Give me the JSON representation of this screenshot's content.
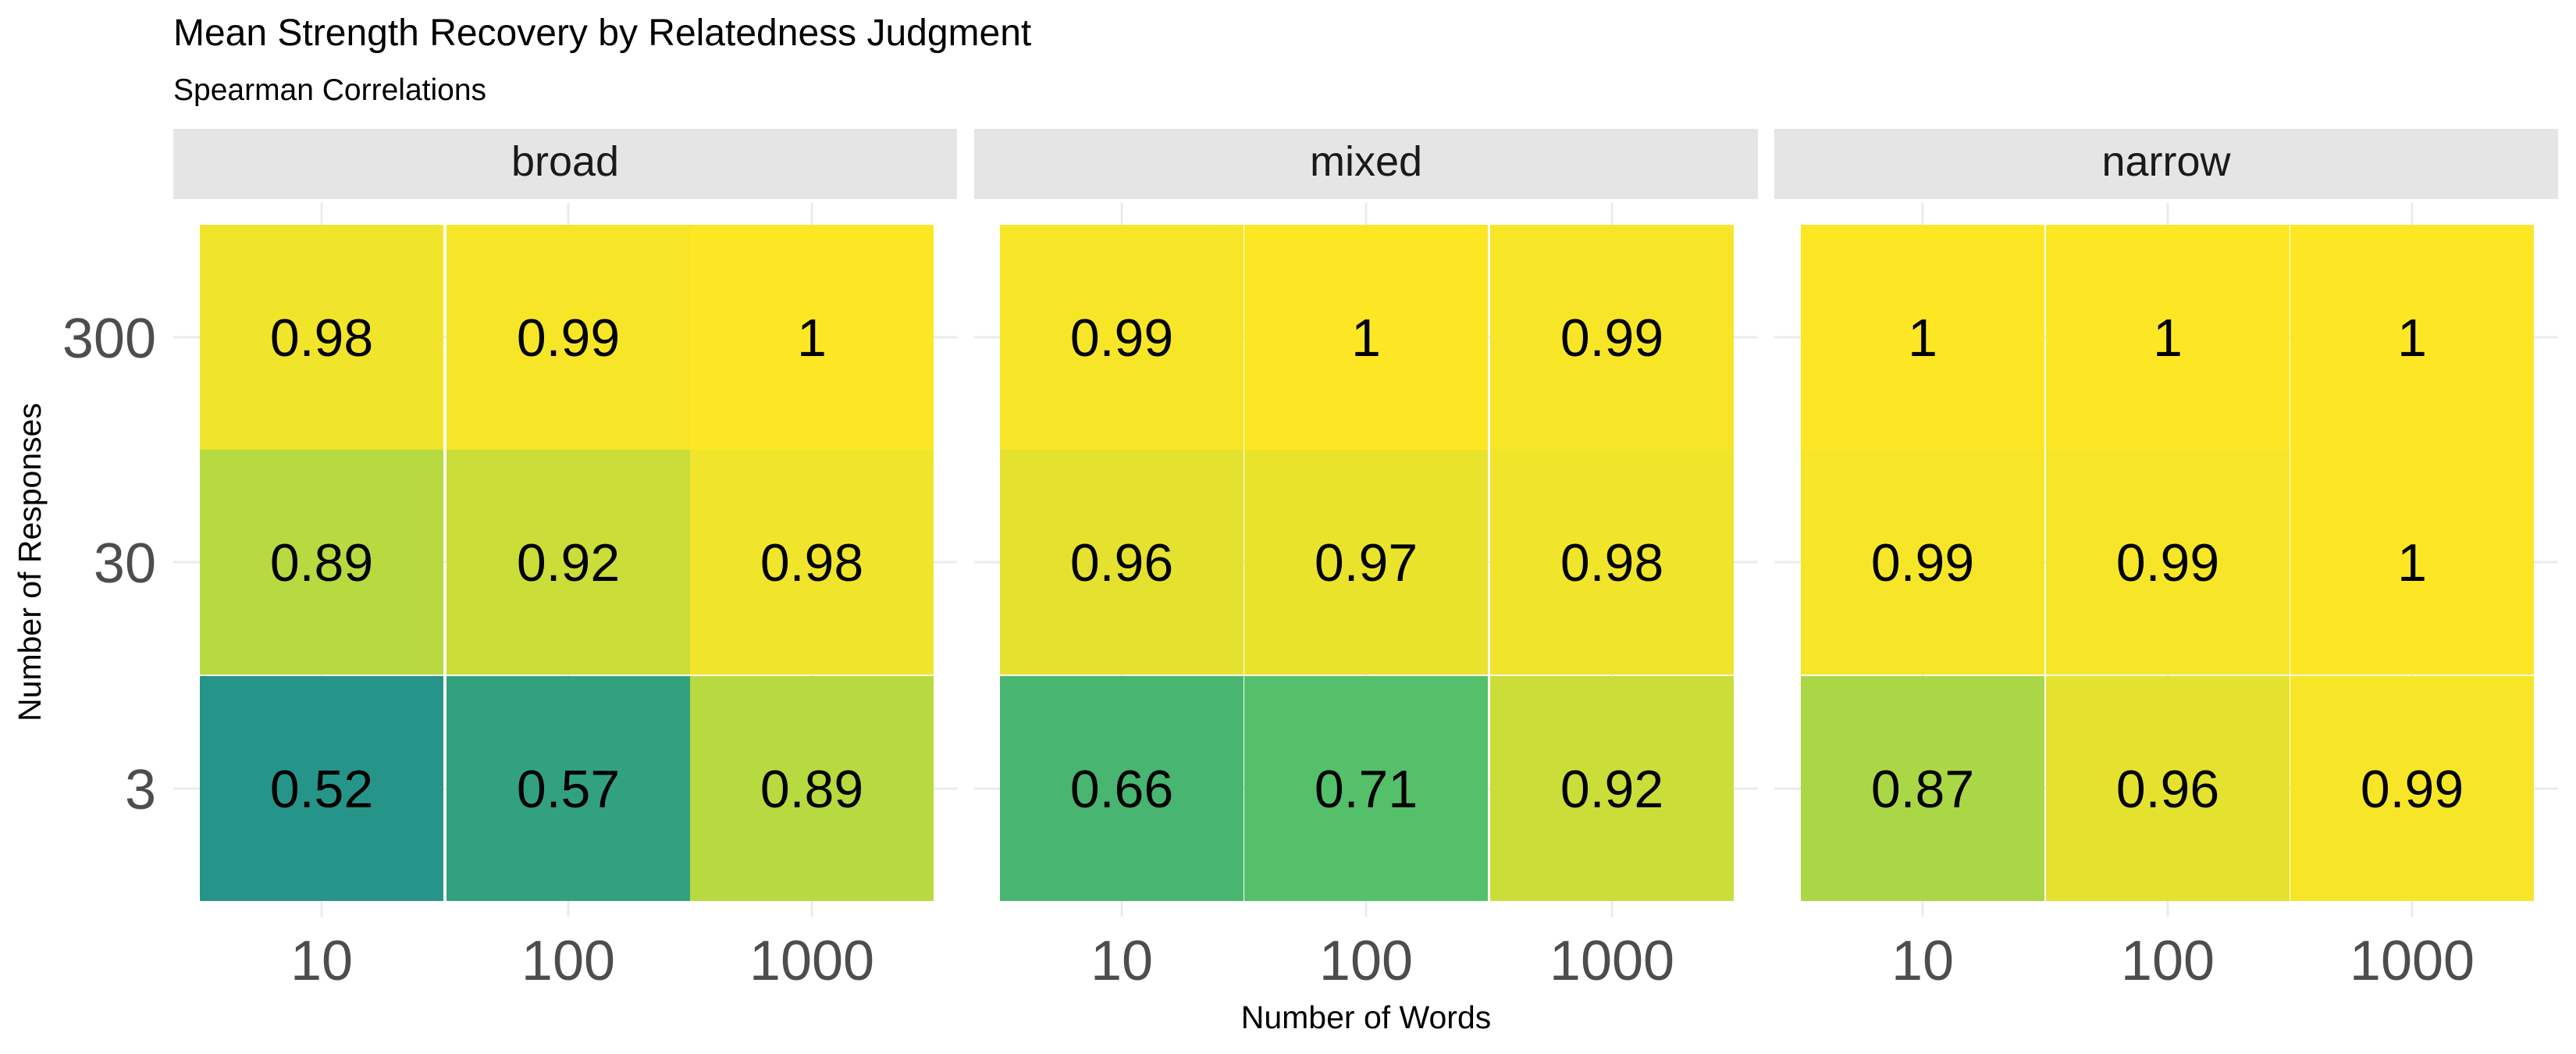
{
  "chart_data": {
    "type": "heatmap",
    "title": "Mean Strength Recovery by Relatedness Judgment",
    "subtitle": "Spearman Correlations",
    "xlabel": "Number of Words",
    "ylabel": "Number of Responses",
    "x_categories": [
      "10",
      "100",
      "1000"
    ],
    "y_categories": [
      "3",
      "30",
      "300"
    ],
    "facets": [
      {
        "name": "broad",
        "values": [
          [
            0.52,
            0.57,
            0.89
          ],
          [
            0.89,
            0.92,
            0.98
          ],
          [
            0.98,
            0.99,
            1
          ]
        ]
      },
      {
        "name": "mixed",
        "values": [
          [
            0.66,
            0.71,
            0.92
          ],
          [
            0.96,
            0.97,
            0.98
          ],
          [
            0.99,
            1,
            0.99
          ]
        ]
      },
      {
        "name": "narrow",
        "values": [
          [
            0.87,
            0.96,
            0.99
          ],
          [
            0.99,
            0.99,
            1
          ],
          [
            1,
            1,
            1
          ]
        ]
      }
    ],
    "color_scale": "viridis",
    "grid": true,
    "legend": "none"
  }
}
